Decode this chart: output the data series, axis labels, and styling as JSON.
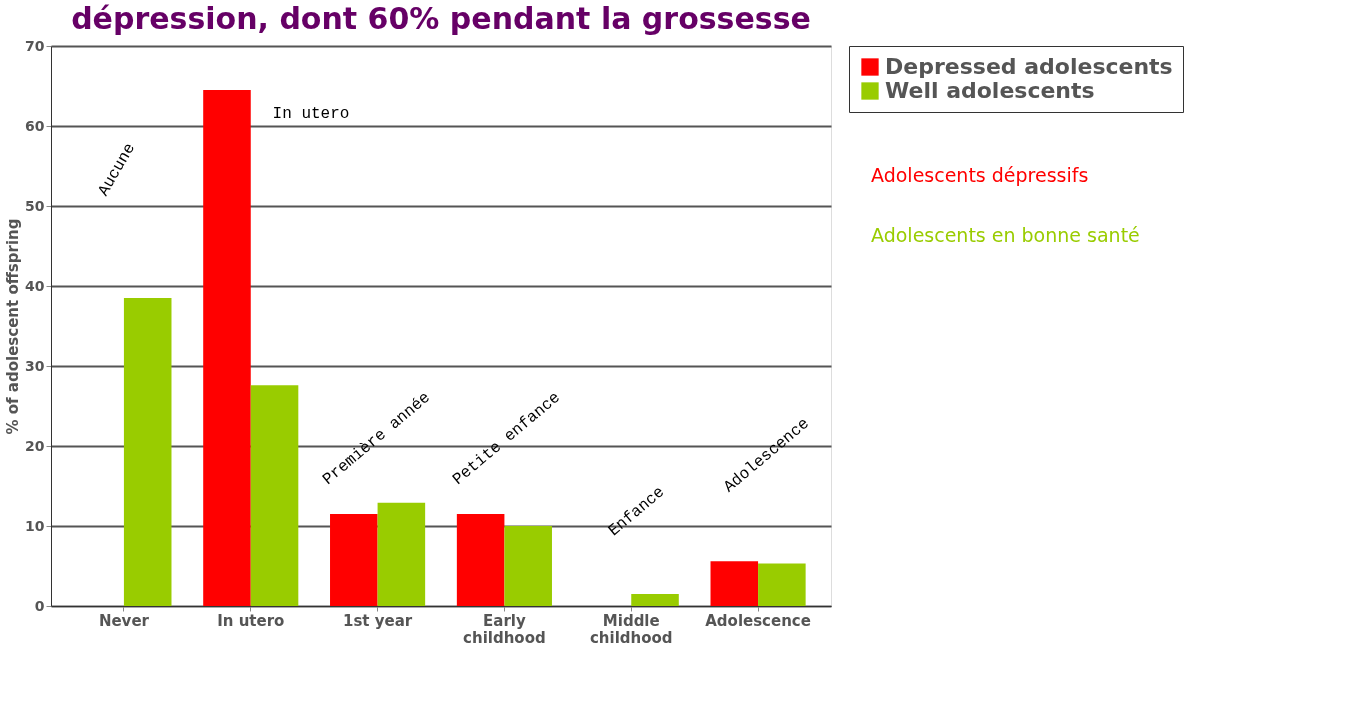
{
  "chart_data": {
    "type": "bar",
    "title": "dépression, dont 60% pendant la grossesse",
    "ylabel": "% of adolescent offspring",
    "categories": [
      "Never",
      "In utero",
      "1st year",
      "Early childhood",
      "Middle childhood",
      "Adolescence"
    ],
    "series": [
      {
        "name": "Depressed adolescents",
        "color": "#ff0000",
        "values": [
          0,
          64.5,
          11.5,
          11.5,
          0,
          5.6
        ]
      },
      {
        "name": "Well adolescents",
        "color": "#99cc00",
        "values": [
          38.5,
          27.6,
          12.9,
          10,
          1.5,
          5.3
        ]
      }
    ],
    "ylim": [
      0,
      70
    ],
    "yticks": [
      0,
      10,
      20,
      30,
      40,
      50,
      60,
      70
    ],
    "grid": "y",
    "legend": "right",
    "annotations": [
      "Aucune",
      "In utero",
      "Première année",
      "Petite enfance",
      "Enfance",
      "Adolescence",
      "Adolescents dépressifs",
      "Adolescents en bonne santé"
    ]
  }
}
